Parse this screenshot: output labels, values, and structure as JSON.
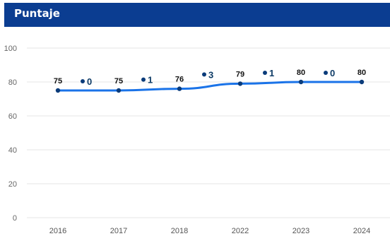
{
  "header": {
    "title": "Puntaje"
  },
  "colors": {
    "header_bg": "#0b3d91",
    "line": "#1a73e8",
    "point": "#0a3b7a",
    "grid": "#e4e4e4",
    "delta_label": "#0d3b66"
  },
  "chart_data": {
    "type": "line",
    "categories": [
      "2016",
      "2017",
      "2018",
      "2022",
      "2023",
      "2024"
    ],
    "values": [
      75,
      75,
      76,
      79,
      80,
      80
    ],
    "ylim": [
      0,
      100
    ],
    "yticks": [
      0,
      20,
      40,
      60,
      80,
      100
    ],
    "grid": true,
    "data_labels": [
      "75",
      "75",
      "76",
      "79",
      "80",
      "80"
    ],
    "deltas": [
      "0",
      "1",
      "3",
      "1",
      "0"
    ]
  }
}
